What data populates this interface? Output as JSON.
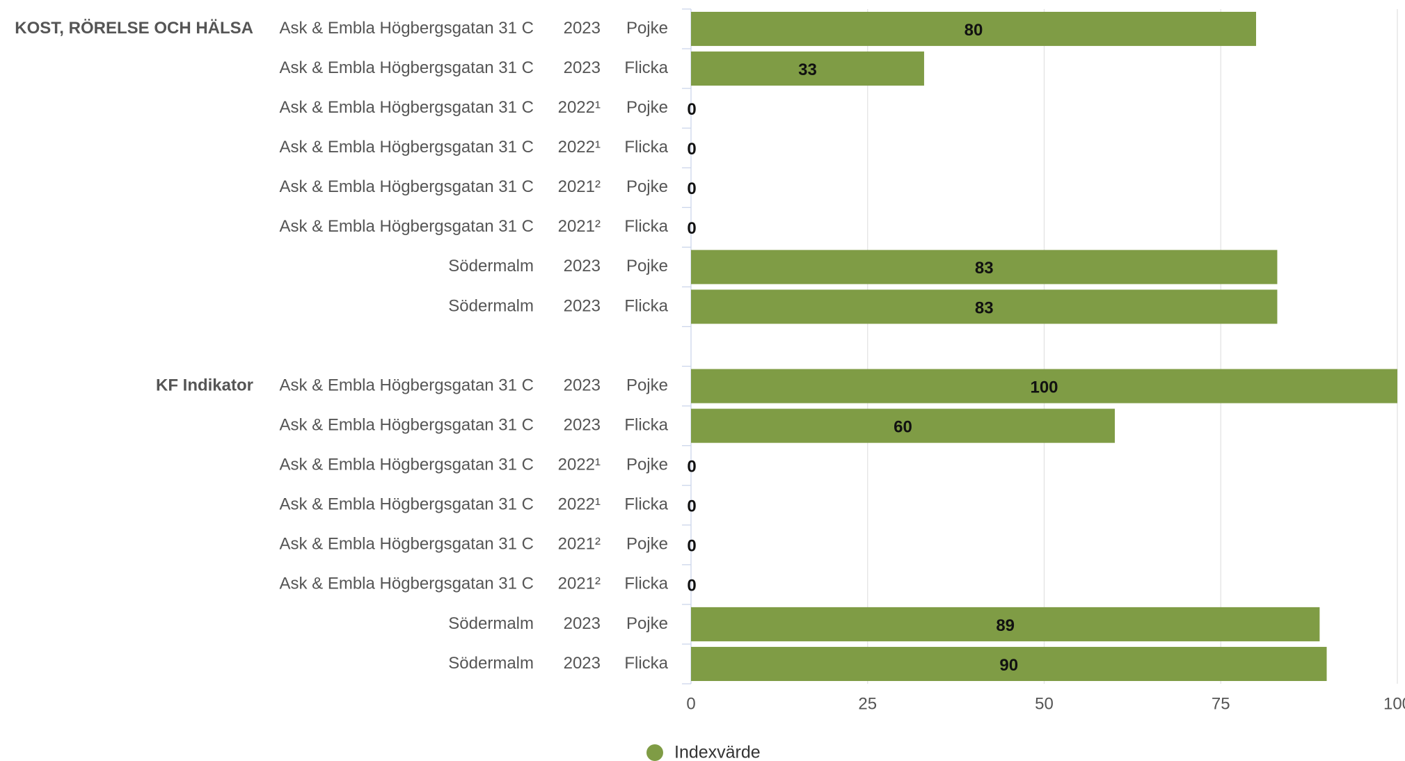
{
  "chart_data": {
    "type": "bar",
    "orientation": "horizontal",
    "color": "#7f9c45",
    "xlim": [
      0,
      100
    ],
    "xticks": [
      0,
      25,
      50,
      75,
      100
    ],
    "grid": true,
    "legend": {
      "name": "Indexvärde",
      "position": "bottom"
    },
    "groups": [
      {
        "name": "KOST, RÖRELSE OCH HÄLSA",
        "categories": [
          {
            "location": "Ask & Embla Högbergsgatan 31 C",
            "year": "2023",
            "gender": "Pojke"
          },
          {
            "location": "Ask & Embla Högbergsgatan 31 C",
            "year": "2023",
            "gender": "Flicka"
          },
          {
            "location": "Ask & Embla Högbergsgatan 31 C",
            "year": "2022¹",
            "gender": "Pojke"
          },
          {
            "location": "Ask & Embla Högbergsgatan 31 C",
            "year": "2022¹",
            "gender": "Flicka"
          },
          {
            "location": "Ask & Embla Högbergsgatan 31 C",
            "year": "2021²",
            "gender": "Pojke"
          },
          {
            "location": "Ask & Embla Högbergsgatan 31 C",
            "year": "2021²",
            "gender": "Flicka"
          },
          {
            "location": "Södermalm",
            "year": "2023",
            "gender": "Pojke"
          },
          {
            "location": "Södermalm",
            "year": "2023",
            "gender": "Flicka"
          }
        ],
        "values": [
          80,
          33,
          0,
          0,
          0,
          0,
          83,
          83
        ]
      },
      {
        "name": "KF Indikator",
        "categories": [
          {
            "location": "Ask & Embla Högbergsgatan 31 C",
            "year": "2023",
            "gender": "Pojke"
          },
          {
            "location": "Ask & Embla Högbergsgatan 31 C",
            "year": "2023",
            "gender": "Flicka"
          },
          {
            "location": "Ask & Embla Högbergsgatan 31 C",
            "year": "2022¹",
            "gender": "Pojke"
          },
          {
            "location": "Ask & Embla Högbergsgatan 31 C",
            "year": "2022¹",
            "gender": "Flicka"
          },
          {
            "location": "Ask & Embla Högbergsgatan 31 C",
            "year": "2021²",
            "gender": "Pojke"
          },
          {
            "location": "Ask & Embla Högbergsgatan 31 C",
            "year": "2021²",
            "gender": "Flicka"
          },
          {
            "location": "Södermalm",
            "year": "2023",
            "gender": "Pojke"
          },
          {
            "location": "Södermalm",
            "year": "2023",
            "gender": "Flicka"
          }
        ],
        "values": [
          100,
          60,
          0,
          0,
          0,
          0,
          89,
          90
        ]
      }
    ]
  }
}
